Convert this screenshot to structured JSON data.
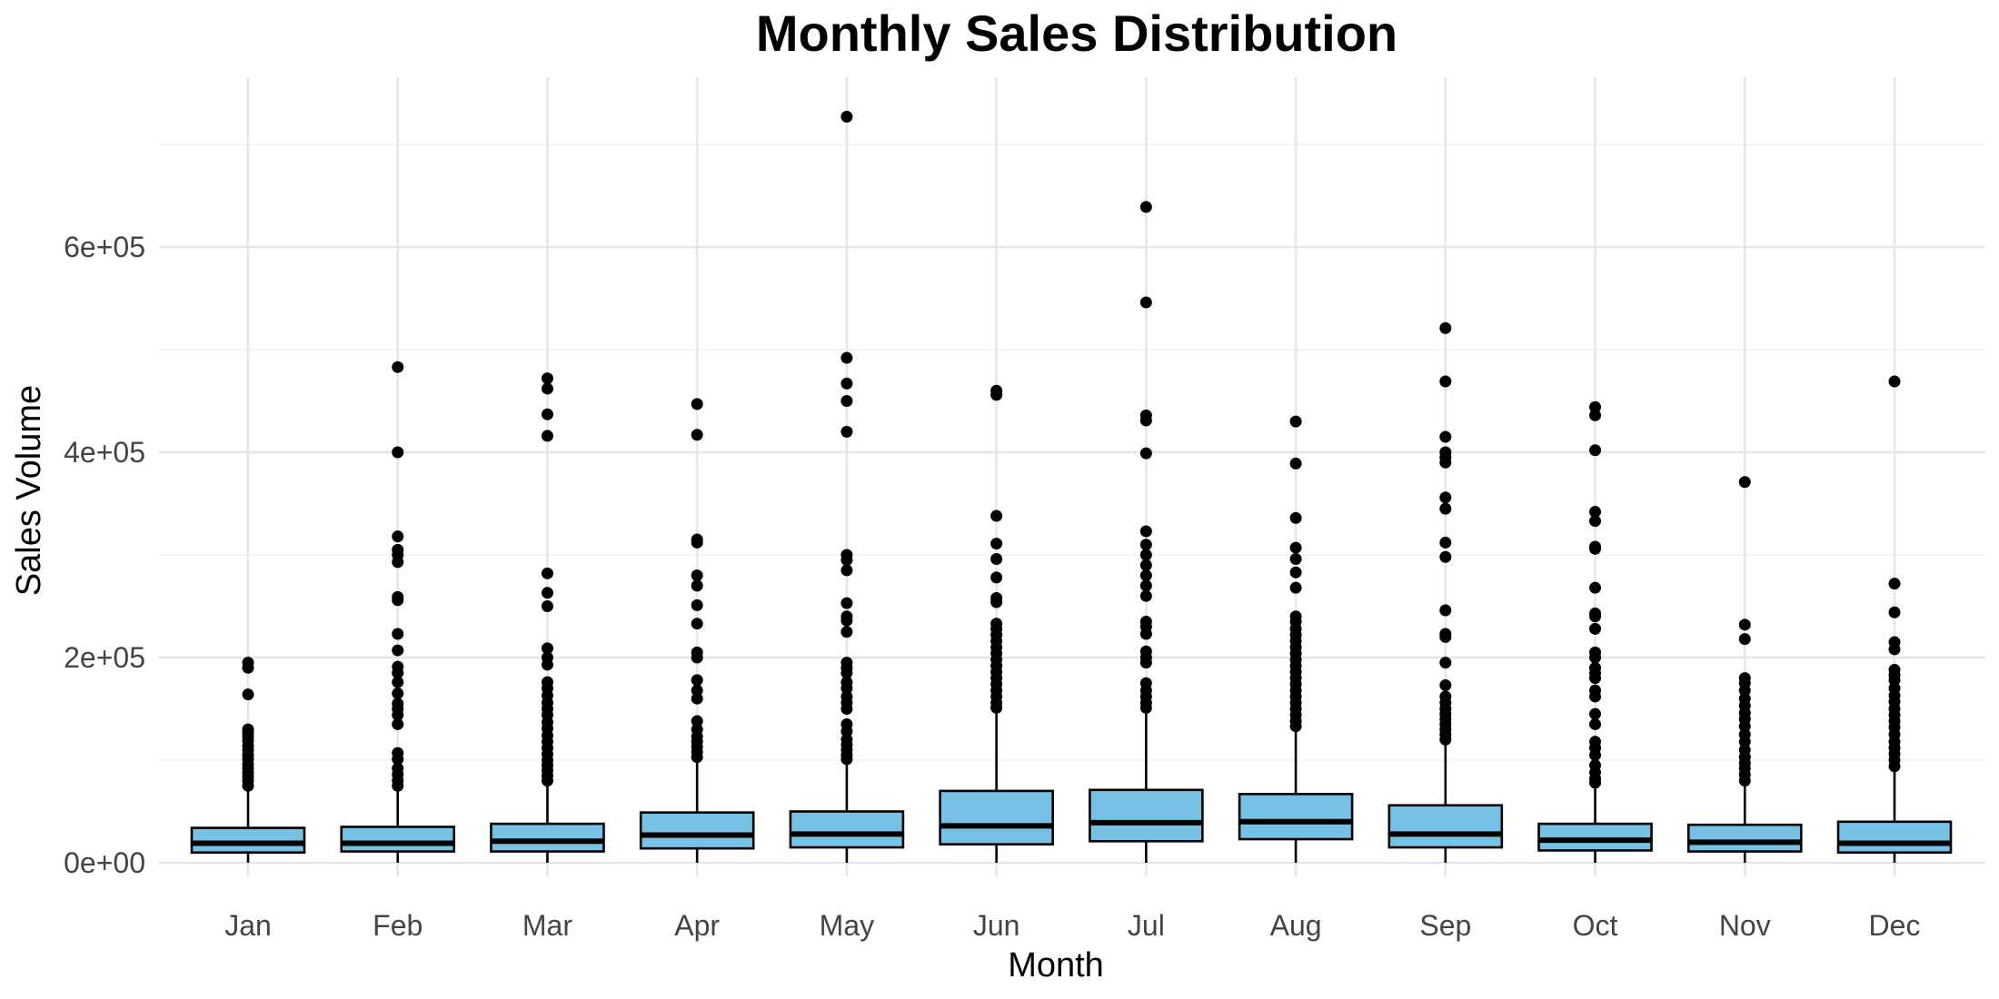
{
  "chart_data": {
    "type": "boxplot",
    "title": "Monthly Sales Distribution",
    "xlabel": "Month",
    "ylabel": "Sales Volume",
    "ylim": [
      -30000,
      755000
    ],
    "y_ticks": [
      0,
      200000,
      400000,
      600000
    ],
    "y_tick_labels": [
      "0e+00",
      "2e+05",
      "4e+05",
      "6e+05"
    ],
    "y_minor_ticks": [
      100000,
      300000,
      500000,
      700000
    ],
    "grid": true,
    "legend": "none",
    "box_fill": "#77c1e5",
    "categories": [
      "Jan",
      "Feb",
      "Mar",
      "Apr",
      "May",
      "Jun",
      "Jul",
      "Aug",
      "Sep",
      "Oct",
      "Nov",
      "Dec"
    ],
    "boxes": [
      {
        "label": "Jan",
        "whisker_low": 0,
        "q1": 10000,
        "median": 19000,
        "q3": 34000,
        "whisker_high": 70000,
        "outliers": [
          195000,
          190000,
          164000,
          130000,
          127000,
          123000,
          119000,
          114000,
          110000,
          105000,
          101000,
          96000,
          92000,
          88000,
          84000,
          80000,
          75000
        ]
      },
      {
        "label": "Feb",
        "whisker_low": 0,
        "q1": 11000,
        "median": 19000,
        "q3": 35000,
        "whisker_high": 70000,
        "outliers": [
          483000,
          400000,
          318000,
          305000,
          300000,
          293000,
          259000,
          256000,
          223000,
          207000,
          191000,
          185000,
          176000,
          165000,
          155000,
          150000,
          144000,
          135000,
          107000,
          101000,
          92000,
          86000,
          80000,
          75000
        ]
      },
      {
        "label": "Mar",
        "whisker_low": 0,
        "q1": 11000,
        "median": 21000,
        "q3": 38000,
        "whisker_high": 76000,
        "outliers": [
          472000,
          462000,
          437000,
          416000,
          282000,
          263000,
          250000,
          209000,
          200000,
          193000,
          176000,
          170000,
          163000,
          156000,
          150000,
          144000,
          137000,
          131000,
          124000,
          118000,
          112000,
          106000,
          100000,
          95000,
          90000,
          85000,
          80000
        ]
      },
      {
        "label": "Apr",
        "whisker_low": 0,
        "q1": 14000,
        "median": 27000,
        "q3": 49000,
        "whisker_high": 100000,
        "outliers": [
          447000,
          417000,
          315000,
          312000,
          280000,
          270000,
          251000,
          233000,
          205000,
          200000,
          178000,
          168000,
          160000,
          138000,
          130000,
          123000,
          118000,
          113000,
          108000,
          103000
        ]
      },
      {
        "label": "May",
        "whisker_low": 0,
        "q1": 15000,
        "median": 28000,
        "q3": 50000,
        "whisker_high": 100000,
        "outliers": [
          727000,
          492000,
          467000,
          450000,
          420000,
          300000,
          295000,
          285000,
          253000,
          240000,
          236000,
          225000,
          195000,
          190000,
          185000,
          176000,
          170000,
          162000,
          156000,
          150000,
          135000,
          128000,
          120000,
          115000,
          110000,
          105000,
          101000
        ]
      },
      {
        "label": "Jun",
        "whisker_low": 0,
        "q1": 18000,
        "median": 36000,
        "q3": 70000,
        "whisker_high": 148000,
        "outliers": [
          460000,
          456000,
          338000,
          311000,
          296000,
          278000,
          258000,
          254000,
          233000,
          228000,
          222000,
          216000,
          210000,
          204000,
          198000,
          192000,
          186000,
          180000,
          174000,
          168000,
          162000,
          156000,
          151000
        ]
      },
      {
        "label": "Jul",
        "whisker_low": 0,
        "q1": 21000,
        "median": 39000,
        "q3": 71000,
        "whisker_high": 148000,
        "outliers": [
          639000,
          546000,
          436000,
          431000,
          399000,
          323000,
          310000,
          300000,
          290000,
          280000,
          270000,
          260000,
          235000,
          230000,
          223000,
          206000,
          200000,
          195000,
          175000,
          168000,
          162000,
          156000,
          151000
        ]
      },
      {
        "label": "Aug",
        "whisker_low": 0,
        "q1": 23000,
        "median": 40000,
        "q3": 67000,
        "whisker_high": 130000,
        "outliers": [
          430000,
          389000,
          336000,
          307000,
          296000,
          283000,
          268000,
          240000,
          235000,
          228000,
          222000,
          216000,
          210000,
          204000,
          198000,
          192000,
          186000,
          180000,
          174000,
          168000,
          162000,
          156000,
          150000,
          144000,
          138000,
          133000
        ]
      },
      {
        "label": "Sep",
        "whisker_low": 0,
        "q1": 15000,
        "median": 28000,
        "q3": 56000,
        "whisker_high": 115000,
        "outliers": [
          521000,
          469000,
          415000,
          400000,
          395000,
          390000,
          356000,
          345000,
          312000,
          298000,
          246000,
          223000,
          220000,
          195000,
          173000,
          162000,
          156000,
          150000,
          145000,
          140000,
          135000,
          130000,
          125000,
          120000
        ]
      },
      {
        "label": "Oct",
        "whisker_low": 0,
        "q1": 12000,
        "median": 22000,
        "q3": 38000,
        "whisker_high": 75000,
        "outliers": [
          444000,
          436000,
          402000,
          342000,
          333000,
          308000,
          306000,
          268000,
          243000,
          240000,
          228000,
          205000,
          200000,
          190000,
          185000,
          180000,
          168000,
          162000,
          145000,
          135000,
          118000,
          112000,
          105000,
          95000,
          88000,
          82000,
          78000
        ]
      },
      {
        "label": "Nov",
        "whisker_low": 0,
        "q1": 11000,
        "median": 20000,
        "q3": 37000,
        "whisker_high": 75000,
        "outliers": [
          371000,
          232000,
          218000,
          180000,
          175000,
          168000,
          160000,
          153000,
          146000,
          140000,
          133000,
          125000,
          118000,
          110000,
          103000,
          97000,
          92000,
          86000,
          80000
        ]
      },
      {
        "label": "Dec",
        "whisker_low": 0,
        "q1": 10000,
        "median": 19000,
        "q3": 40000,
        "whisker_high": 90000,
        "outliers": [
          469000,
          272000,
          244000,
          215000,
          208000,
          188000,
          183000,
          178000,
          170000,
          163000,
          157000,
          150000,
          144000,
          138000,
          132000,
          125000,
          118000,
          112000,
          106000,
          100000,
          94000
        ]
      }
    ]
  }
}
